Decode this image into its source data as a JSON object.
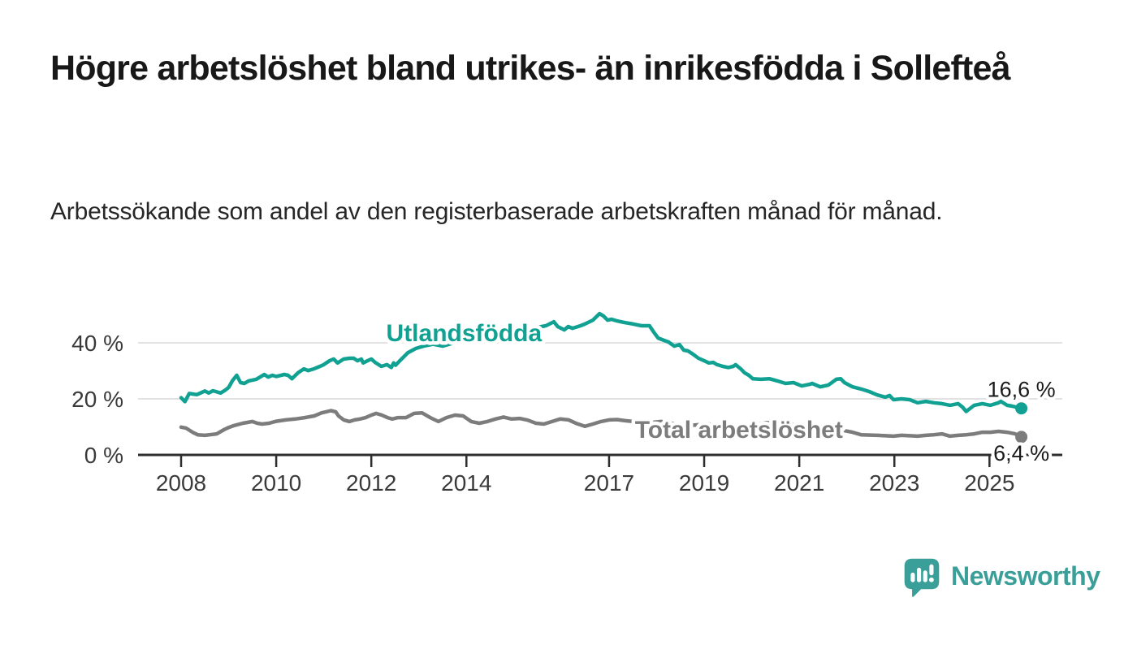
{
  "title": "Högre arbetslöshet bland utrikes- än inrikesfödda i Sollefteå",
  "subtitle": "Arbetssökande som andel av den registerbaserade arbetskraften månad för månad.",
  "branding": {
    "name": "Newsworthy",
    "color": "#3a9f98"
  },
  "chart_data": {
    "type": "line",
    "title": "Högre arbetslöshet bland utrikes- än inrikesfödda i Sollefteå",
    "xlabel": "",
    "ylabel": "",
    "x_unit": "year (decimal = month)",
    "xlim": [
      2008,
      2025.9
    ],
    "ylim": [
      0,
      52
    ],
    "grid": "horizontal",
    "legend_position": "inline-labels",
    "colors": {
      "grid": "#d8d8d8",
      "axis": "#2e2e2e",
      "tick_text": "#3a3a3a",
      "value_text": "#1a1a1a"
    },
    "y_axis": {
      "ticks": [
        {
          "value": 0,
          "label": "0 %"
        },
        {
          "value": 20,
          "label": "20 %"
        },
        {
          "value": 40,
          "label": "40 %"
        }
      ]
    },
    "x_axis": {
      "ticks": [
        2008,
        2010,
        2012,
        2014,
        2017,
        2019,
        2021,
        2023,
        2025
      ]
    },
    "series": [
      {
        "id": "utlandsfodda",
        "name": "Utlandsfödda",
        "color": "#11a192",
        "end_label": "16,6 %",
        "end_value": 16.6,
        "end_label_position": "above",
        "label_pos": {
          "x": 2013.95,
          "y": 43.5
        },
        "points": [
          [
            2008.0,
            20.4
          ],
          [
            2008.08,
            19.0
          ],
          [
            2008.17,
            21.9
          ],
          [
            2008.33,
            21.5
          ],
          [
            2008.5,
            22.8
          ],
          [
            2008.58,
            22.1
          ],
          [
            2008.67,
            22.9
          ],
          [
            2008.75,
            22.5
          ],
          [
            2008.83,
            22.1
          ],
          [
            2008.92,
            23.0
          ],
          [
            2009.0,
            24.1
          ],
          [
            2009.08,
            26.5
          ],
          [
            2009.17,
            28.4
          ],
          [
            2009.25,
            25.8
          ],
          [
            2009.33,
            25.5
          ],
          [
            2009.42,
            26.4
          ],
          [
            2009.58,
            27.0
          ],
          [
            2009.75,
            28.7
          ],
          [
            2009.83,
            27.8
          ],
          [
            2009.92,
            28.4
          ],
          [
            2010.0,
            28.0
          ],
          [
            2010.17,
            28.7
          ],
          [
            2010.25,
            28.4
          ],
          [
            2010.33,
            27.2
          ],
          [
            2010.46,
            29.3
          ],
          [
            2010.58,
            30.7
          ],
          [
            2010.67,
            30.1
          ],
          [
            2010.79,
            30.7
          ],
          [
            2010.92,
            31.6
          ],
          [
            2011.0,
            32.2
          ],
          [
            2011.12,
            33.6
          ],
          [
            2011.21,
            34.2
          ],
          [
            2011.29,
            32.8
          ],
          [
            2011.42,
            34.2
          ],
          [
            2011.54,
            34.5
          ],
          [
            2011.63,
            34.5
          ],
          [
            2011.71,
            33.6
          ],
          [
            2011.79,
            34.2
          ],
          [
            2011.83,
            32.8
          ],
          [
            2011.92,
            33.6
          ],
          [
            2012.0,
            34.2
          ],
          [
            2012.08,
            33.0
          ],
          [
            2012.21,
            31.6
          ],
          [
            2012.33,
            32.2
          ],
          [
            2012.42,
            31.2
          ],
          [
            2012.47,
            32.8
          ],
          [
            2012.51,
            32.0
          ],
          [
            2012.6,
            33.6
          ],
          [
            2012.77,
            36.5
          ],
          [
            2012.94,
            38.0
          ],
          [
            2013.1,
            38.8
          ],
          [
            2013.3,
            39.5
          ],
          [
            2013.5,
            38.8
          ],
          [
            2013.7,
            39.8
          ],
          [
            2013.9,
            40.5
          ],
          [
            2014.1,
            40.2
          ],
          [
            2014.3,
            41.0
          ],
          [
            2014.5,
            41.8
          ],
          [
            2014.7,
            42.5
          ],
          [
            2014.9,
            43.2
          ],
          [
            2015.1,
            43.8
          ],
          [
            2015.3,
            44.5
          ],
          [
            2015.5,
            45.5
          ],
          [
            2015.67,
            46.1
          ],
          [
            2015.84,
            47.5
          ],
          [
            2015.92,
            45.8
          ],
          [
            2016.06,
            44.6
          ],
          [
            2016.14,
            45.8
          ],
          [
            2016.23,
            45.2
          ],
          [
            2016.4,
            46.1
          ],
          [
            2016.49,
            46.7
          ],
          [
            2016.66,
            48.1
          ],
          [
            2016.8,
            50.4
          ],
          [
            2016.88,
            49.6
          ],
          [
            2016.97,
            48.1
          ],
          [
            2017.05,
            48.4
          ],
          [
            2017.17,
            47.8
          ],
          [
            2017.34,
            47.2
          ],
          [
            2017.51,
            46.7
          ],
          [
            2017.68,
            46.1
          ],
          [
            2017.85,
            46.1
          ],
          [
            2017.94,
            43.8
          ],
          [
            2018.03,
            41.7
          ],
          [
            2018.15,
            40.9
          ],
          [
            2018.25,
            40.3
          ],
          [
            2018.37,
            38.8
          ],
          [
            2018.48,
            39.4
          ],
          [
            2018.57,
            37.4
          ],
          [
            2018.66,
            37.1
          ],
          [
            2018.76,
            36.0
          ],
          [
            2018.88,
            34.5
          ],
          [
            2019.0,
            33.6
          ],
          [
            2019.1,
            32.8
          ],
          [
            2019.19,
            33.0
          ],
          [
            2019.27,
            32.2
          ],
          [
            2019.39,
            31.6
          ],
          [
            2019.51,
            31.2
          ],
          [
            2019.61,
            31.6
          ],
          [
            2019.66,
            32.2
          ],
          [
            2019.77,
            30.7
          ],
          [
            2019.85,
            29.3
          ],
          [
            2019.94,
            28.4
          ],
          [
            2020.02,
            27.2
          ],
          [
            2020.19,
            27.0
          ],
          [
            2020.37,
            27.2
          ],
          [
            2020.54,
            26.4
          ],
          [
            2020.71,
            25.5
          ],
          [
            2020.88,
            25.8
          ],
          [
            2021.05,
            24.6
          ],
          [
            2021.22,
            25.2
          ],
          [
            2021.27,
            25.5
          ],
          [
            2021.44,
            24.3
          ],
          [
            2021.61,
            24.9
          ],
          [
            2021.78,
            27.0
          ],
          [
            2021.87,
            27.2
          ],
          [
            2021.95,
            25.8
          ],
          [
            2022.12,
            24.3
          ],
          [
            2022.3,
            23.5
          ],
          [
            2022.47,
            22.6
          ],
          [
            2022.64,
            21.4
          ],
          [
            2022.81,
            20.6
          ],
          [
            2022.9,
            21.2
          ],
          [
            2022.98,
            19.7
          ],
          [
            2023.15,
            20.0
          ],
          [
            2023.32,
            19.7
          ],
          [
            2023.49,
            18.6
          ],
          [
            2023.66,
            19.1
          ],
          [
            2023.83,
            18.6
          ],
          [
            2024.0,
            18.3
          ],
          [
            2024.17,
            17.7
          ],
          [
            2024.34,
            18.3
          ],
          [
            2024.43,
            17.1
          ],
          [
            2024.51,
            15.5
          ],
          [
            2024.68,
            17.7
          ],
          [
            2024.85,
            18.3
          ],
          [
            2025.02,
            17.7
          ],
          [
            2025.19,
            18.6
          ],
          [
            2025.24,
            19.1
          ],
          [
            2025.37,
            17.7
          ],
          [
            2025.48,
            17.4
          ],
          [
            2025.58,
            17.0
          ],
          [
            2025.67,
            16.6
          ]
        ]
      },
      {
        "id": "total",
        "name": "Total arbetslöshet",
        "color": "#7c7c7c",
        "end_label": "6,4 %",
        "end_value": 6.4,
        "end_label_position": "below",
        "label_pos": {
          "x": 2019.73,
          "y": 9.0
        },
        "points": [
          [
            2008.0,
            9.9
          ],
          [
            2008.1,
            9.6
          ],
          [
            2008.25,
            8.0
          ],
          [
            2008.35,
            7.2
          ],
          [
            2008.5,
            7.0
          ],
          [
            2008.6,
            7.2
          ],
          [
            2008.75,
            7.5
          ],
          [
            2008.9,
            9.0
          ],
          [
            2009.0,
            9.8
          ],
          [
            2009.1,
            10.4
          ],
          [
            2009.3,
            11.3
          ],
          [
            2009.5,
            11.9
          ],
          [
            2009.6,
            11.3
          ],
          [
            2009.7,
            11.0
          ],
          [
            2009.85,
            11.3
          ],
          [
            2010.0,
            12.0
          ],
          [
            2010.2,
            12.5
          ],
          [
            2010.4,
            12.8
          ],
          [
            2010.6,
            13.3
          ],
          [
            2010.8,
            13.9
          ],
          [
            2010.95,
            15.0
          ],
          [
            2011.05,
            15.4
          ],
          [
            2011.15,
            15.8
          ],
          [
            2011.25,
            15.4
          ],
          [
            2011.31,
            13.9
          ],
          [
            2011.42,
            12.5
          ],
          [
            2011.54,
            11.9
          ],
          [
            2011.65,
            12.5
          ],
          [
            2011.76,
            12.8
          ],
          [
            2011.88,
            13.3
          ],
          [
            2012.0,
            14.2
          ],
          [
            2012.1,
            14.8
          ],
          [
            2012.22,
            14.2
          ],
          [
            2012.34,
            13.3
          ],
          [
            2012.44,
            12.8
          ],
          [
            2012.56,
            13.3
          ],
          [
            2012.73,
            13.3
          ],
          [
            2012.9,
            14.8
          ],
          [
            2013.07,
            15.0
          ],
          [
            2013.24,
            13.3
          ],
          [
            2013.41,
            11.9
          ],
          [
            2013.58,
            13.3
          ],
          [
            2013.76,
            14.2
          ],
          [
            2013.93,
            13.9
          ],
          [
            2014.1,
            11.9
          ],
          [
            2014.27,
            11.3
          ],
          [
            2014.44,
            11.9
          ],
          [
            2014.61,
            12.8
          ],
          [
            2014.78,
            13.5
          ],
          [
            2014.95,
            12.8
          ],
          [
            2015.12,
            13.0
          ],
          [
            2015.29,
            12.4
          ],
          [
            2015.46,
            11.3
          ],
          [
            2015.63,
            11.0
          ],
          [
            2015.8,
            11.9
          ],
          [
            2015.97,
            12.8
          ],
          [
            2016.15,
            12.5
          ],
          [
            2016.32,
            11.2
          ],
          [
            2016.49,
            10.2
          ],
          [
            2016.66,
            11.0
          ],
          [
            2016.83,
            11.9
          ],
          [
            2017.0,
            12.5
          ],
          [
            2017.17,
            12.6
          ],
          [
            2017.34,
            12.2
          ],
          [
            2017.51,
            11.9
          ],
          [
            2017.7,
            11.3
          ],
          [
            2017.9,
            11.6
          ],
          [
            2018.1,
            11.9
          ],
          [
            2018.3,
            11.3
          ],
          [
            2018.5,
            10.8
          ],
          [
            2018.7,
            10.5
          ],
          [
            2018.9,
            10.8
          ],
          [
            2019.1,
            11.0
          ],
          [
            2019.3,
            10.5
          ],
          [
            2019.5,
            10.2
          ],
          [
            2019.7,
            10.0
          ],
          [
            2019.9,
            10.4
          ],
          [
            2020.1,
            10.8
          ],
          [
            2020.3,
            11.5
          ],
          [
            2020.5,
            11.3
          ],
          [
            2020.7,
            11.0
          ],
          [
            2020.9,
            10.8
          ],
          [
            2021.1,
            10.4
          ],
          [
            2021.3,
            10.0
          ],
          [
            2021.5,
            9.6
          ],
          [
            2021.7,
            9.2
          ],
          [
            2021.9,
            8.8
          ],
          [
            2022.12,
            8.1
          ],
          [
            2022.3,
            7.2
          ],
          [
            2022.64,
            7.0
          ],
          [
            2022.98,
            6.7
          ],
          [
            2023.15,
            7.0
          ],
          [
            2023.49,
            6.7
          ],
          [
            2023.66,
            7.0
          ],
          [
            2023.83,
            7.2
          ],
          [
            2024.0,
            7.5
          ],
          [
            2024.17,
            6.7
          ],
          [
            2024.34,
            7.0
          ],
          [
            2024.51,
            7.2
          ],
          [
            2024.68,
            7.5
          ],
          [
            2024.85,
            8.1
          ],
          [
            2025.02,
            8.1
          ],
          [
            2025.19,
            8.4
          ],
          [
            2025.37,
            8.1
          ],
          [
            2025.54,
            7.5
          ],
          [
            2025.67,
            6.4
          ]
        ]
      }
    ]
  }
}
